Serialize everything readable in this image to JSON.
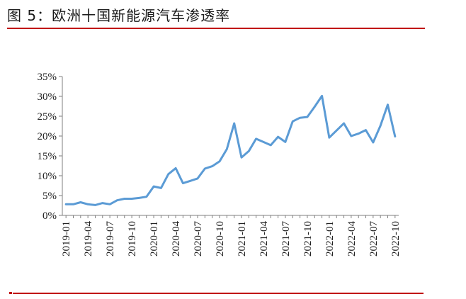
{
  "figure": {
    "title": "图 5：欧洲十国新能源汽车渗透率",
    "rule_color": "#c00000"
  },
  "chart_data": {
    "type": "line",
    "title": "",
    "xlabel": "",
    "ylabel": "",
    "ylim": [
      0,
      35
    ],
    "yticks": [
      "0%",
      "5%",
      "10%",
      "15%",
      "20%",
      "25%",
      "30%",
      "35%"
    ],
    "xtick_labels": [
      "2019-01",
      "2019-04",
      "2019-07",
      "2019-10",
      "2020-01",
      "2020-04",
      "2020-07",
      "2020-10",
      "2021-01",
      "2021-04",
      "2021-07",
      "2021-10",
      "2022-01",
      "2022-04",
      "2022-07",
      "2022-10"
    ],
    "x": [
      "2019-01",
      "2019-02",
      "2019-03",
      "2019-04",
      "2019-05",
      "2019-06",
      "2019-07",
      "2019-08",
      "2019-09",
      "2019-10",
      "2019-11",
      "2019-12",
      "2020-01",
      "2020-02",
      "2020-03",
      "2020-04",
      "2020-05",
      "2020-06",
      "2020-07",
      "2020-08",
      "2020-09",
      "2020-10",
      "2020-11",
      "2020-12",
      "2021-01",
      "2021-02",
      "2021-03",
      "2021-04",
      "2021-05",
      "2021-06",
      "2021-07",
      "2021-08",
      "2021-09",
      "2021-10",
      "2021-11",
      "2021-12",
      "2022-01",
      "2022-02",
      "2022-03",
      "2022-04",
      "2022-05",
      "2022-06",
      "2022-07",
      "2022-08",
      "2022-09",
      "2022-10"
    ],
    "grid": false,
    "legend": "none",
    "series": [
      {
        "color": "#5b9bd5",
        "values": [
          2.8,
          2.8,
          3.3,
          2.8,
          2.6,
          3.1,
          2.8,
          3.8,
          4.2,
          4.2,
          4.4,
          4.7,
          7.3,
          6.9,
          10.4,
          11.9,
          8.1,
          8.7,
          9.3,
          11.8,
          12.4,
          13.6,
          16.7,
          23.2,
          14.6,
          16.2,
          19.3,
          18.5,
          17.7,
          19.8,
          18.5,
          23.7,
          24.6,
          24.8,
          27.4,
          30.1,
          19.6,
          21.4,
          23.2,
          20.0,
          20.6,
          21.5,
          18.4,
          22.6,
          27.9,
          19.9
        ]
      }
    ]
  }
}
